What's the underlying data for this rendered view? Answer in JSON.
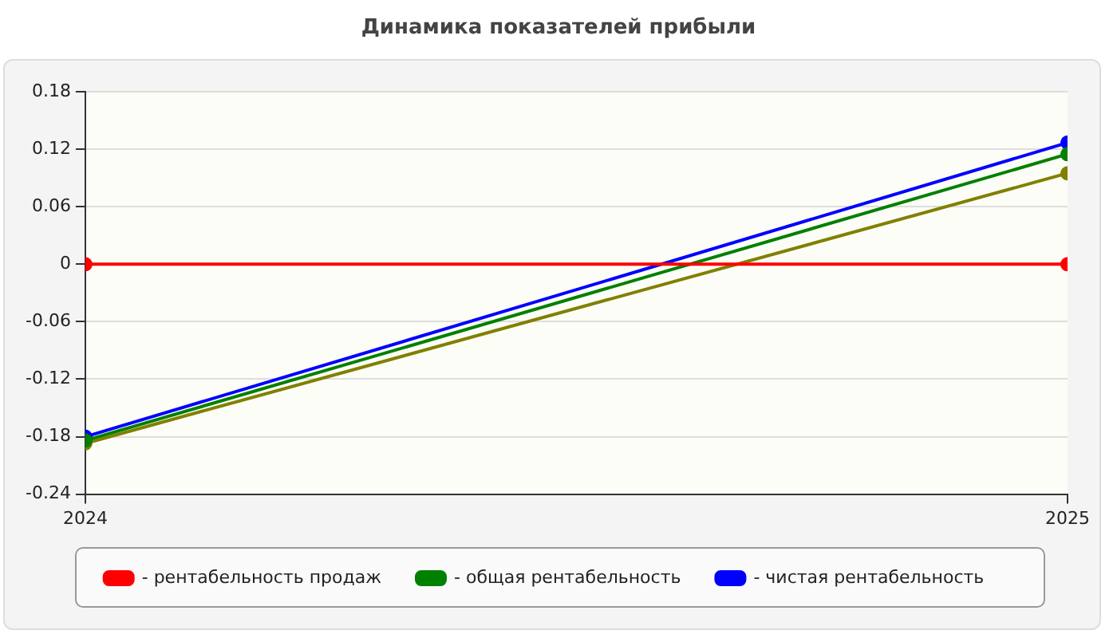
{
  "chart_data": {
    "type": "line",
    "title": "Динамика показателей прибыли",
    "x": [
      2024,
      2025
    ],
    "xlim": [
      2024,
      2025
    ],
    "xticks": [
      2024,
      2025
    ],
    "ylim": [
      -0.24,
      0.18
    ],
    "yticks": [
      -0.24,
      -0.18,
      -0.12,
      -0.06,
      0,
      0.06,
      0.12,
      0.18
    ],
    "grid": "y",
    "legend": "bottom",
    "marker": "circle",
    "series": [
      {
        "name": "- рентабельность продаж",
        "color": "#ff0000",
        "values": [
          0,
          0
        ]
      },
      {
        "name": "- общая рентабельность",
        "color": "#008000",
        "values": [
          -0.184,
          0.115
        ]
      },
      {
        "name": "- чистая рентабельность",
        "color": "#0000ff",
        "values": [
          -0.18,
          0.127
        ]
      },
      {
        "color": "#808000",
        "values": [
          -0.187,
          0.095
        ]
      }
    ]
  }
}
